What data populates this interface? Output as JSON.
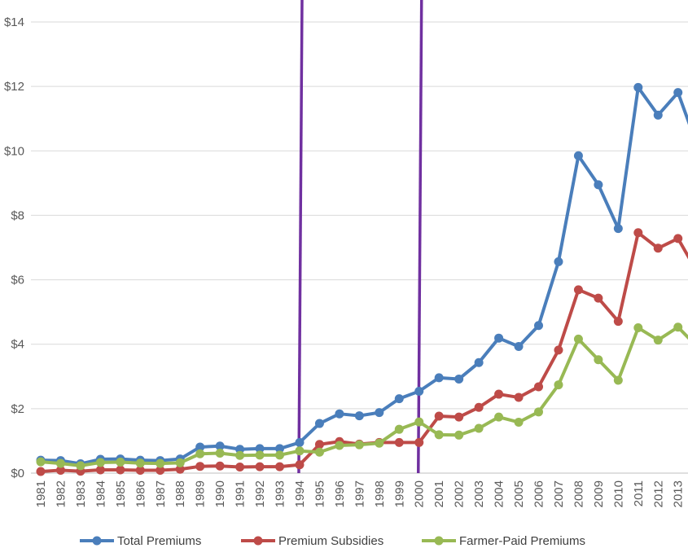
{
  "chart_data": {
    "type": "line",
    "title": "",
    "xlabel": "",
    "ylabel": "",
    "ylim": [
      0,
      14
    ],
    "yticks": [
      0,
      2,
      4,
      6,
      8,
      10,
      12,
      14
    ],
    "ytick_labels": [
      "$0",
      "$2",
      "$4",
      "$6",
      "$8",
      "$10",
      "$12",
      "$14"
    ],
    "grid": true,
    "legend_position": "bottom",
    "categories": [
      "1981",
      "1982",
      "1983",
      "1984",
      "1985",
      "1986",
      "1987",
      "1988",
      "1989",
      "1990",
      "1991",
      "1992",
      "1993",
      "1994",
      "1995",
      "1996",
      "1997",
      "1998",
      "1999",
      "2000",
      "2001",
      "2002",
      "2003",
      "2004",
      "2005",
      "2006",
      "2007",
      "2008",
      "2009",
      "2010",
      "2011",
      "2012",
      "2013"
    ],
    "series": [
      {
        "name": "Total Premiums",
        "color": "#4a7ebb",
        "values": [
          0.4,
          0.39,
          0.29,
          0.43,
          0.44,
          0.4,
          0.39,
          0.44,
          0.81,
          0.84,
          0.74,
          0.76,
          0.76,
          0.95,
          1.54,
          1.84,
          1.78,
          1.88,
          2.31,
          2.54,
          2.96,
          2.92,
          3.43,
          4.19,
          3.93,
          4.58,
          6.56,
          9.85,
          8.95,
          7.59,
          11.97,
          11.11,
          11.81
        ],
        "continues_to": 10.1
      },
      {
        "name": "Premium Subsidies",
        "color": "#be4b48",
        "values": [
          0.05,
          0.09,
          0.06,
          0.1,
          0.1,
          0.09,
          0.09,
          0.12,
          0.21,
          0.22,
          0.19,
          0.2,
          0.2,
          0.26,
          0.89,
          0.98,
          0.9,
          0.95,
          0.95,
          0.95,
          1.77,
          1.74,
          2.04,
          2.45,
          2.35,
          2.68,
          3.82,
          5.69,
          5.43,
          4.71,
          7.46,
          6.98,
          7.28
        ],
        "continues_to": 6.2
      },
      {
        "name": "Farmer-Paid Premiums",
        "color": "#98b954",
        "values": [
          0.35,
          0.3,
          0.23,
          0.33,
          0.34,
          0.31,
          0.3,
          0.32,
          0.6,
          0.62,
          0.55,
          0.56,
          0.56,
          0.69,
          0.65,
          0.86,
          0.88,
          0.93,
          1.36,
          1.59,
          1.19,
          1.18,
          1.39,
          1.74,
          1.58,
          1.9,
          2.74,
          4.16,
          3.52,
          2.88,
          4.51,
          4.13,
          4.53
        ],
        "continues_to": 3.9
      }
    ],
    "vertical_markers": [
      {
        "category": "1994",
        "color": "#7030a0"
      },
      {
        "category": "2000",
        "color": "#7030a0"
      }
    ]
  }
}
